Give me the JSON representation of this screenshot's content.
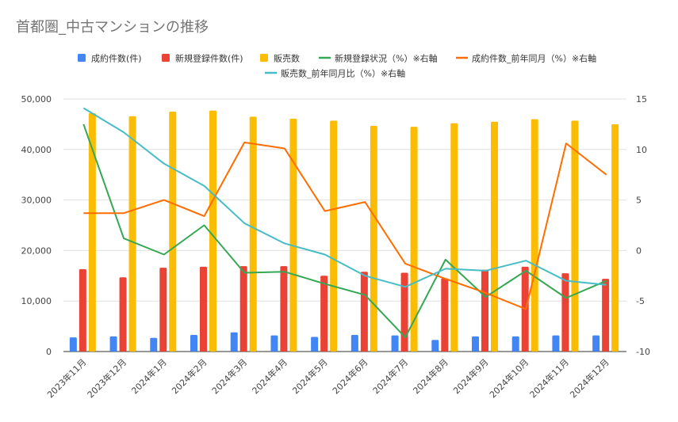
{
  "chart_data": {
    "type": "bar",
    "title": "首都圏_中古マンションの推移",
    "categories": [
      "2023年11月",
      "2023年12月",
      "2024年1月",
      "2024年2月",
      "2024年3月",
      "2024年4月",
      "2024年5月",
      "2024年6月",
      "2024年7月",
      "2024年8月",
      "2024年9月",
      "2024年10月",
      "2024年11月",
      "2024年12月"
    ],
    "left_axis": {
      "ylim": [
        0,
        50000
      ],
      "ticks": [
        "0",
        "10,000",
        "20,000",
        "30,000",
        "40,000",
        "50,000"
      ],
      "tick_values": [
        0,
        10000,
        20000,
        30000,
        40000,
        50000
      ]
    },
    "right_axis": {
      "ylim": [
        -10,
        15
      ],
      "ticks": [
        "-10",
        "-5",
        "0",
        "5",
        "10",
        "15"
      ],
      "tick_values": [
        -10,
        -5,
        0,
        5,
        10,
        15
      ]
    },
    "legend_position": "top",
    "grid": true,
    "series": [
      {
        "name": "成約件数(件)",
        "kind": "bar",
        "axis": "left",
        "color": "#4285F4",
        "values": [
          2800,
          3000,
          2700,
          3300,
          3800,
          3200,
          2900,
          3300,
          3200,
          2300,
          3000,
          3000,
          3200,
          3200
        ]
      },
      {
        "name": "新規登録件数(件)",
        "kind": "bar",
        "axis": "left",
        "color": "#EA4335",
        "values": [
          16300,
          14700,
          16600,
          16800,
          16900,
          16900,
          15000,
          15800,
          15600,
          14500,
          16200,
          16800,
          15500,
          14400
        ]
      },
      {
        "name": "販売数",
        "kind": "bar",
        "axis": "left",
        "color": "#FBBC04",
        "values": [
          47200,
          46600,
          47500,
          47700,
          46500,
          46100,
          45700,
          44700,
          44500,
          45200,
          45500,
          46000,
          45700,
          45000
        ]
      },
      {
        "name": "新規登録状況（%）※右軸",
        "kind": "line",
        "axis": "right",
        "color": "#34A853",
        "values": [
          12.5,
          1.2,
          -0.4,
          2.5,
          -2.2,
          -2.1,
          -3.3,
          -4.4,
          -8.6,
          -0.9,
          -4.6,
          -2.0,
          -4.7,
          -3.0
        ]
      },
      {
        "name": "成約件数_前年同月（%）※右軸",
        "kind": "line",
        "axis": "right",
        "color": "#FF6D01",
        "values": [
          3.7,
          3.7,
          5.0,
          3.4,
          10.7,
          10.1,
          3.9,
          4.8,
          -1.3,
          -2.8,
          -4.2,
          -5.8,
          10.6,
          7.5
        ]
      },
      {
        "name": "販売数_前年同月比（%）※右軸",
        "kind": "line",
        "axis": "right",
        "color": "#46BDC6",
        "values": [
          14.1,
          11.7,
          8.6,
          6.4,
          2.7,
          0.7,
          -0.4,
          -2.5,
          -3.6,
          -1.8,
          -2.0,
          -1.0,
          -3.0,
          -3.4
        ]
      }
    ]
  }
}
